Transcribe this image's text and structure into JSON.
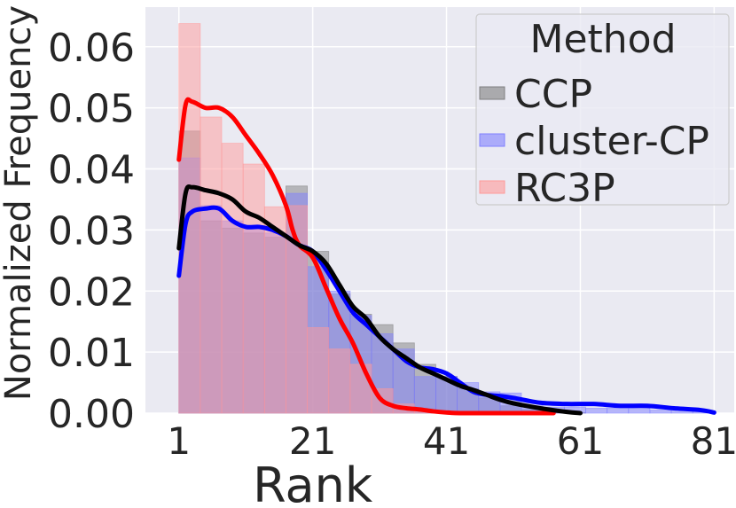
{
  "chart_data": {
    "type": "histogram",
    "xlabel": "Rank",
    "ylabel": "Normalized Frequency",
    "xlim": [
      -4,
      84
    ],
    "ylim": [
      0,
      0.0665
    ],
    "x_ticks": [
      1,
      21,
      41,
      61,
      81
    ],
    "y_ticks": [
      0.0,
      0.01,
      0.02,
      0.03,
      0.04,
      0.05,
      0.06
    ],
    "y_tick_labels": [
      "0.00",
      "0.01",
      "0.02",
      "0.03",
      "0.04",
      "0.05",
      "0.06"
    ],
    "grid": true,
    "legend": {
      "title": "Method",
      "position": "top-right"
    },
    "bin_edges": [
      1,
      4.2,
      7.4,
      10.6,
      13.8,
      17,
      20.2,
      23.4,
      26.6,
      29.8,
      33,
      36.2,
      39.4,
      42.6,
      45.8,
      49,
      52.2,
      55.4,
      58.6,
      61.8,
      65,
      68.2,
      71.4,
      74.6,
      77.8,
      81
    ],
    "series": [
      {
        "name": "CCP",
        "color": "#7f7f7f",
        "kde_color": "#000000",
        "hist": [
          0.0462,
          0.0315,
          0.0303,
          0.0295,
          0.0288,
          0.0372,
          0.0265,
          0.0195,
          0.0162,
          0.0145,
          0.0115,
          0.008,
          0.006,
          0.004,
          0.0025,
          0.0012,
          0.0006,
          0.0002,
          0.0001,
          0,
          0,
          0,
          0,
          0,
          0
        ],
        "kde_x": [
          1,
          2,
          3,
          5,
          7,
          9,
          11,
          13,
          15,
          17,
          19,
          21,
          23,
          25,
          27,
          29,
          31,
          33,
          35,
          37,
          39,
          41,
          43,
          45,
          47,
          49,
          51,
          55,
          59,
          61
        ],
        "kde_y": [
          0.027,
          0.036,
          0.037,
          0.0365,
          0.036,
          0.035,
          0.033,
          0.032,
          0.0305,
          0.029,
          0.0275,
          0.0265,
          0.0245,
          0.021,
          0.0175,
          0.0155,
          0.0125,
          0.0105,
          0.009,
          0.0075,
          0.0065,
          0.0055,
          0.0045,
          0.0038,
          0.003,
          0.0022,
          0.0016,
          0.0008,
          0.0002,
          0.0
        ]
      },
      {
        "name": "cluster-CP",
        "color": "#8080ff",
        "kde_color": "#0000ff",
        "hist": [
          0.0418,
          0.034,
          0.0315,
          0.0305,
          0.0295,
          0.036,
          0.024,
          0.02,
          0.016,
          0.013,
          0.0105,
          0.006,
          0.006,
          0.005,
          0.0035,
          0.0033,
          0.0012,
          0.001,
          0.001,
          0.0008,
          0.0008,
          0.0008,
          0.0005,
          0.0005,
          0.0003
        ],
        "kde_x": [
          1,
          2,
          3,
          5,
          7,
          9,
          11,
          13,
          15,
          17,
          19,
          21,
          23,
          25,
          27,
          29,
          31,
          33,
          35,
          37,
          39,
          41,
          43,
          45,
          47,
          49,
          51,
          55,
          59,
          63,
          67,
          71,
          75,
          79,
          81
        ],
        "kde_y": [
          0.0225,
          0.031,
          0.033,
          0.0335,
          0.0335,
          0.0315,
          0.0305,
          0.0305,
          0.03,
          0.029,
          0.0275,
          0.0265,
          0.0235,
          0.02,
          0.0165,
          0.0145,
          0.0125,
          0.0105,
          0.0085,
          0.0075,
          0.0072,
          0.0065,
          0.005,
          0.0035,
          0.003,
          0.0028,
          0.0025,
          0.0017,
          0.0015,
          0.0015,
          0.0012,
          0.0012,
          0.0008,
          0.0005,
          0.0001
        ]
      },
      {
        "name": "RC3P",
        "color": "#ff9999",
        "kde_color": "#ff0000",
        "hist": [
          0.0638,
          0.0485,
          0.0442,
          0.0408,
          0.0338,
          0.034,
          0.014,
          0.0105,
          0.008,
          0.004,
          0.0015,
          0.0005,
          0.0002,
          0.0001,
          0,
          0,
          0,
          0,
          0,
          0,
          0,
          0,
          0,
          0,
          0
        ],
        "kde_x": [
          1,
          2,
          3,
          5,
          7,
          9,
          11,
          13,
          15,
          17,
          18,
          19,
          21,
          23,
          25,
          27,
          29,
          31,
          33,
          35,
          37,
          39,
          41,
          43,
          47,
          51,
          55,
          57
        ],
        "kde_y": [
          0.0415,
          0.0505,
          0.051,
          0.05,
          0.05,
          0.0485,
          0.0455,
          0.0425,
          0.039,
          0.034,
          0.03,
          0.0275,
          0.0255,
          0.0205,
          0.0155,
          0.0115,
          0.0065,
          0.0025,
          0.0012,
          0.0008,
          0.0006,
          0.0003,
          0.0001,
          0.0,
          0.0,
          0.0,
          0.0,
          0.0
        ]
      }
    ]
  }
}
